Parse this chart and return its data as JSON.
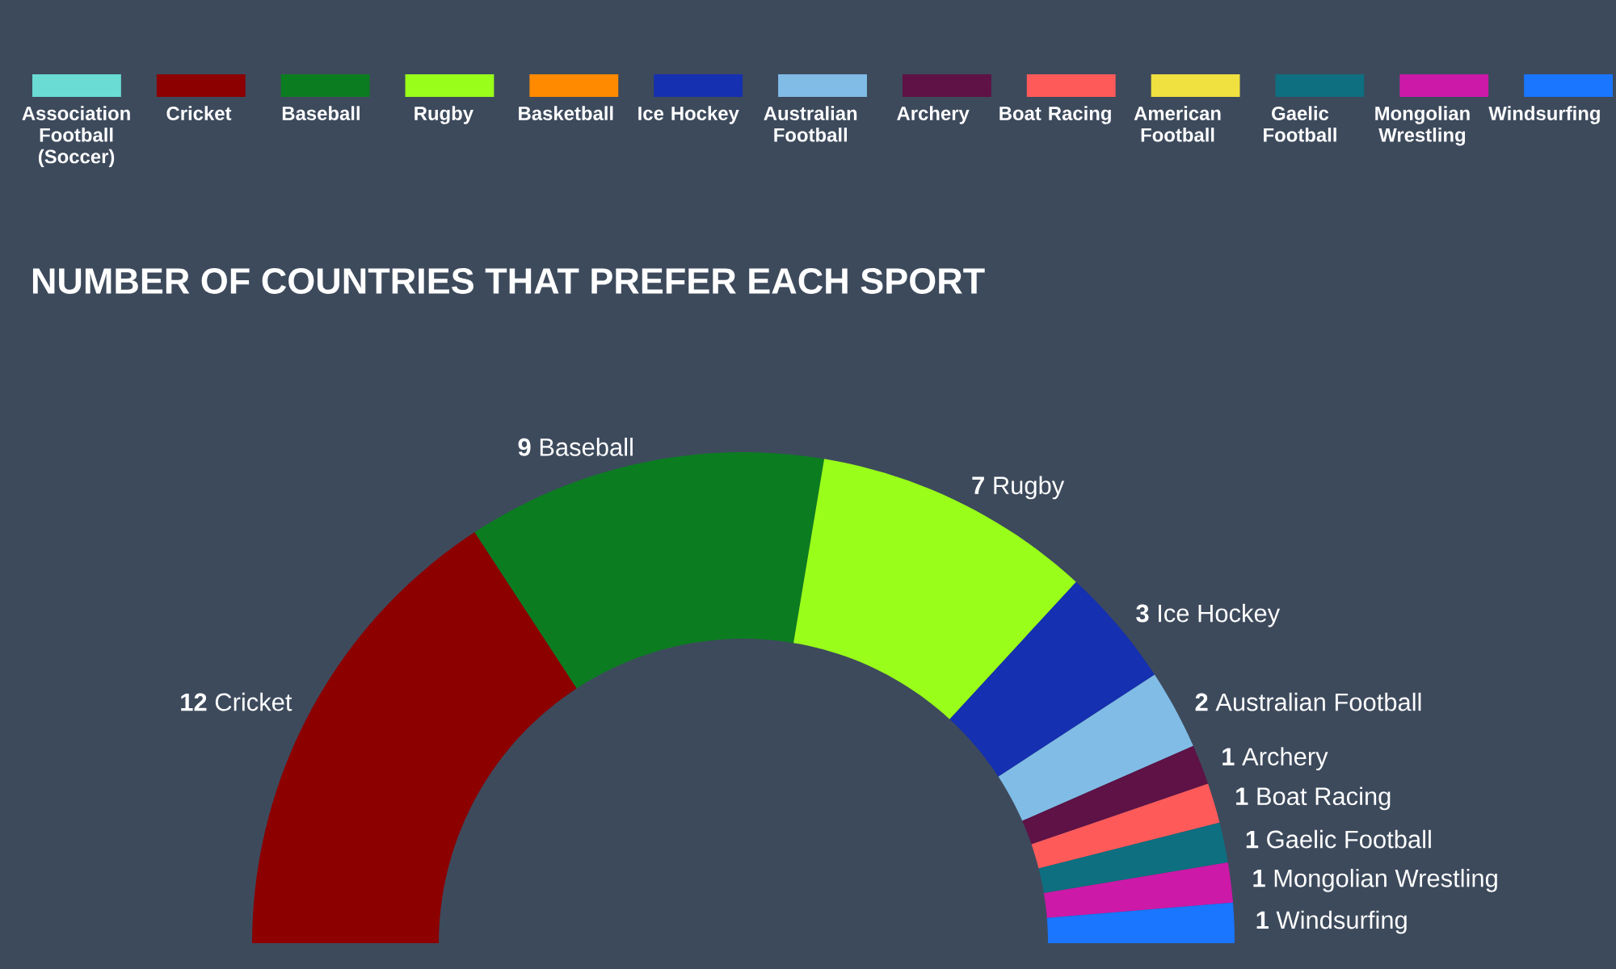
{
  "chart_data": {
    "type": "donut",
    "title": "NUMBER OF COUNTRIES THAT PREFER EACH SPORT",
    "categories": [
      "Association Football (Soccer)",
      "Cricket",
      "Baseball",
      "Rugby",
      "Basketball",
      "Ice Hockey",
      "Australian Football",
      "Archery",
      "Boat Racing",
      "American Football",
      "Gaelic Football",
      "Mongolian Wrestling",
      "Windsurfing"
    ],
    "values": [
      null,
      12,
      9,
      7,
      null,
      3,
      2,
      1,
      1,
      null,
      1,
      1,
      1
    ],
    "colors": [
      "#6adcd4",
      "#8c0000",
      "#0b7d20",
      "#99ff1a",
      "#ff8a00",
      "#1530b0",
      "#80bce6",
      "#5e1246",
      "#ff5a5a",
      "#f0e040",
      "#0e6f80",
      "#cc19a8",
      "#1a75ff"
    ],
    "data_labels": true,
    "legend": "top"
  }
}
